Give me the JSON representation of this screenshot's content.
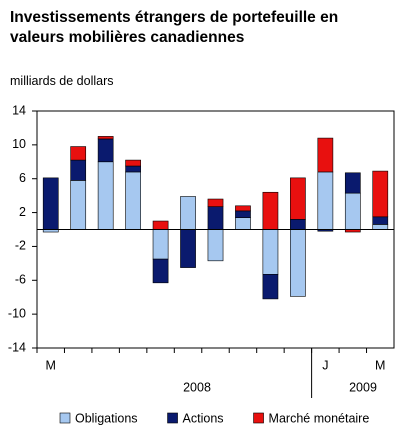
{
  "chart_data": {
    "type": "stacked_bar",
    "title": "Investissements étrangers de portefeuille en valeurs mobilières canadiennes",
    "y_axis_label": "milliards de dollars",
    "categories": [
      "M",
      null,
      null,
      null,
      null,
      null,
      null,
      null,
      null,
      null,
      "J",
      null,
      "M"
    ],
    "year_labels": [
      "2008",
      "2009"
    ],
    "series": [
      {
        "name": "Obligations",
        "color": "#a6c8f0",
        "values": [
          -0.3,
          5.8,
          8.0,
          6.8,
          -3.5,
          3.9,
          -3.7,
          1.4,
          -5.3,
          -7.9,
          6.8,
          4.3,
          0.6
        ]
      },
      {
        "name": "Actions",
        "color": "#0a1a6e",
        "values": [
          6.1,
          2.4,
          2.7,
          0.7,
          -2.8,
          -4.5,
          2.7,
          0.8,
          -2.9,
          1.2,
          -0.2,
          2.4,
          0.9
        ]
      },
      {
        "name": "Marché monétaire",
        "color": "#e8100f",
        "values": [
          0,
          1.6,
          0.3,
          0.7,
          1.0,
          0,
          0.9,
          0.6,
          4.4,
          4.9,
          4.0,
          -0.3,
          5.4
        ]
      }
    ],
    "ylim": [
      -14,
      14
    ],
    "yticks": [
      -14,
      -10,
      -6,
      -2,
      2,
      6,
      10,
      14
    ],
    "zero_line": true
  }
}
